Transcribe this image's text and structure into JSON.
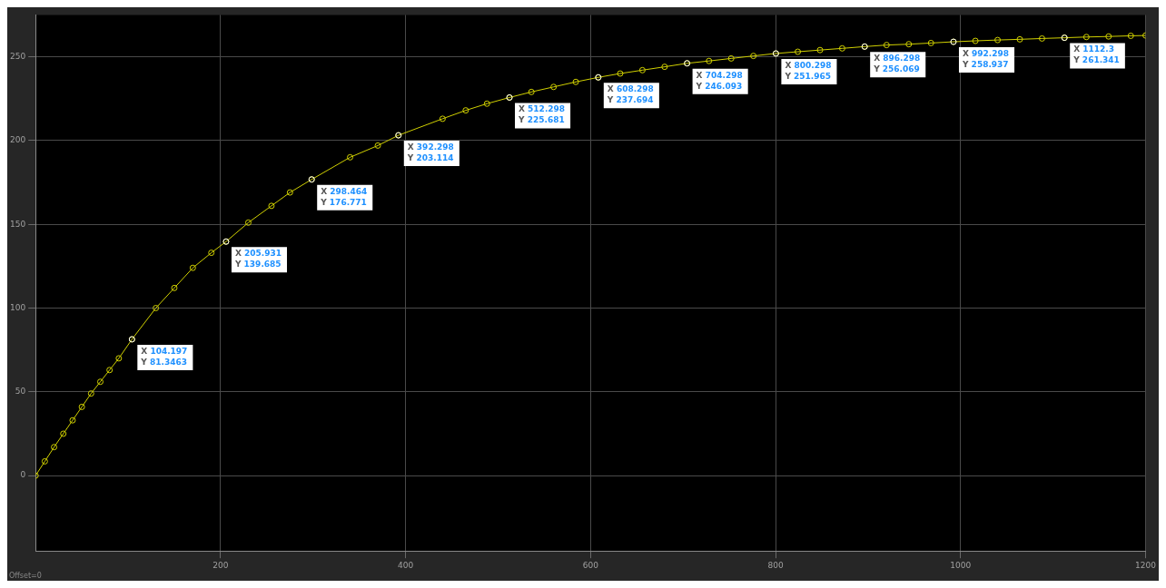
{
  "chart_data": {
    "type": "line",
    "marker": "circle",
    "line_style": "solid",
    "grid": true,
    "legend": false,
    "xlim": [
      0,
      1200
    ],
    "ylim": [
      -45,
      275
    ],
    "xticks": [
      200,
      400,
      600,
      800,
      1000,
      1200
    ],
    "yticks": [
      0,
      50,
      100,
      150,
      200,
      250
    ],
    "series": [
      {
        "color": "#d0d000",
        "x": [
          0,
          10,
          20,
          30,
          40,
          50,
          60,
          70,
          80,
          90,
          104.197,
          130,
          150,
          170,
          190,
          205.931,
          230,
          255,
          275,
          298.464,
          340,
          370,
          392.298,
          440,
          465,
          488,
          512.298,
          536,
          560,
          584,
          608.298,
          632,
          656,
          680,
          704.298,
          728,
          752,
          776,
          800.298,
          824,
          848,
          872,
          896.298,
          920,
          944,
          968,
          992.298,
          1016,
          1040,
          1064,
          1088,
          1112.3,
          1136,
          1160,
          1184,
          1200
        ],
        "values": [
          0,
          8.5,
          17,
          25,
          33,
          41,
          49,
          56,
          63,
          70,
          81.3463,
          100,
          112,
          124,
          133,
          139.685,
          151,
          161,
          169,
          176.771,
          190,
          197,
          203.114,
          213,
          218,
          222,
          225.681,
          229,
          232,
          235,
          237.694,
          240,
          242,
          244,
          246.093,
          247.5,
          249,
          250.5,
          251.965,
          253,
          254,
          255,
          256.069,
          257,
          257.5,
          258.2,
          258.937,
          259.5,
          260,
          260.4,
          260.9,
          261.341,
          261.8,
          262.1,
          262.5,
          262.7
        ]
      }
    ],
    "annotations": [
      {
        "text": "X 104.197\nY 81.3463",
        "x": 104.197,
        "y": 81.3463
      },
      {
        "text": "X 205.931\nY 139.685",
        "x": 205.931,
        "y": 139.685
      },
      {
        "text": "X 298.464\nY 176.771",
        "x": 298.464,
        "y": 176.771
      },
      {
        "text": "X 392.298\nY 203.114",
        "x": 392.298,
        "y": 203.114
      },
      {
        "text": "X 512.298\nY 225.681",
        "x": 512.298,
        "y": 225.681
      },
      {
        "text": "X 608.298\nY 237.694",
        "x": 608.298,
        "y": 237.694
      },
      {
        "text": "X 704.298\nY 246.093",
        "x": 704.298,
        "y": 246.093
      },
      {
        "text": "X 800.298\nY 251.965",
        "x": 800.298,
        "y": 251.965
      },
      {
        "text": "X 896.298\nY 256.069",
        "x": 896.298,
        "y": 256.069
      },
      {
        "text": "X 992.298\nY 258.937",
        "x": 992.298,
        "y": 258.937
      },
      {
        "text": "X 1112.3\nY 261.341",
        "x": 1112.3,
        "y": 261.341
      },
      "Offset=0"
    ]
  }
}
